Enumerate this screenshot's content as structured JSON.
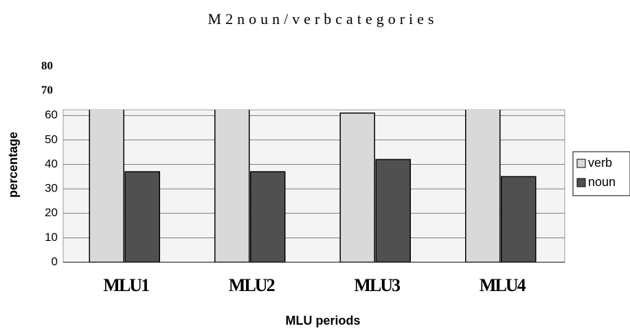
{
  "chart_data": {
    "type": "bar",
    "title": "M2noun/verbcategories",
    "x_label": "MLU periods",
    "y_label": "percentage",
    "categories": [
      "MLU1",
      "MLU2",
      "MLU3",
      "MLU4"
    ],
    "series": [
      {
        "name": "verb",
        "color": "#d9d9d9",
        "values": [
          63,
          63,
          61,
          63
        ]
      },
      {
        "name": "noun",
        "color": "#505050",
        "values": [
          37,
          37,
          42,
          35
        ]
      }
    ],
    "ylim": [
      0,
      80
    ],
    "yticks": [
      0,
      10,
      20,
      30,
      40,
      50,
      60,
      70,
      80
    ],
    "grid": true,
    "legend": "right"
  }
}
